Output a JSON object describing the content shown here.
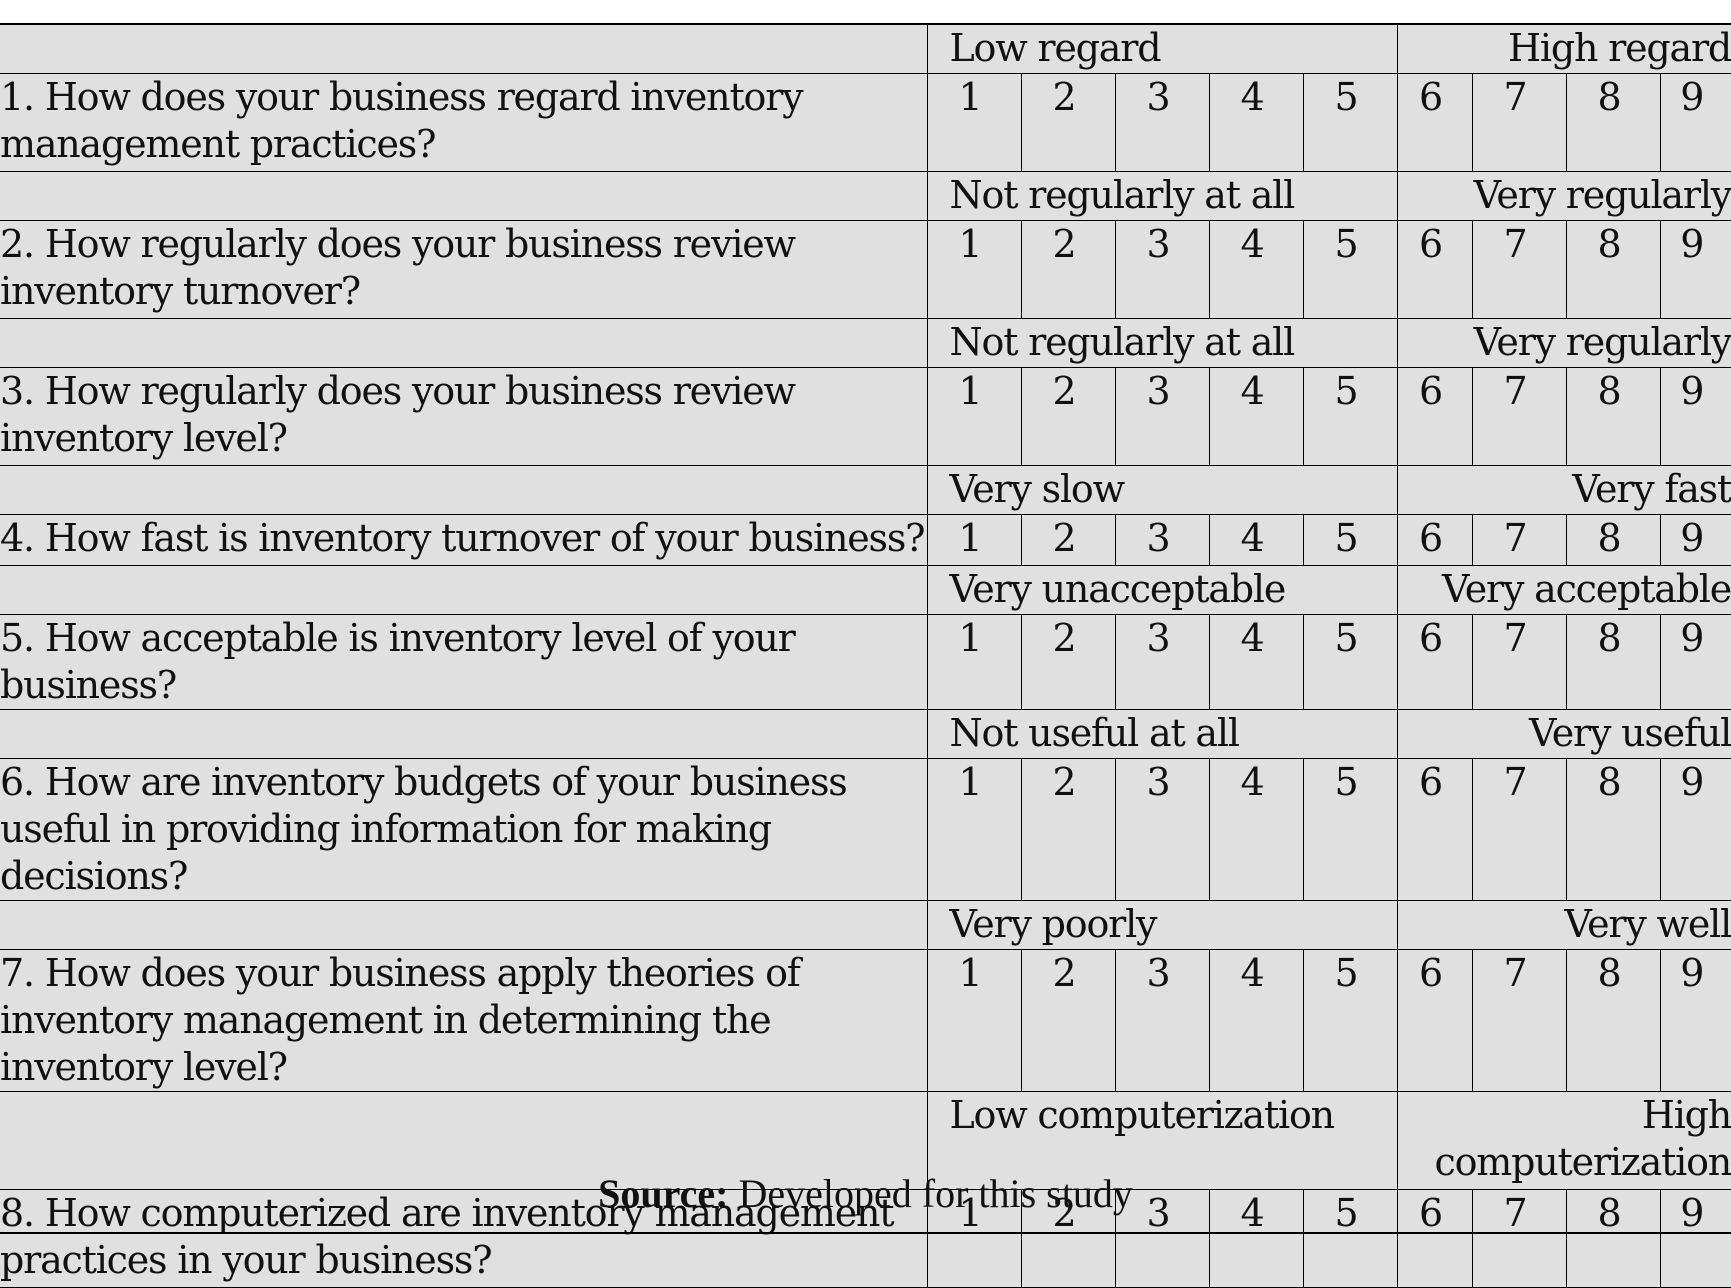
{
  "scale_values": [
    "1",
    "2",
    "3",
    "4",
    "5",
    "6",
    "7",
    "8",
    "9"
  ],
  "questions": [
    {
      "text": "1. How does your business regard inventory management practices?",
      "low": "Low regard",
      "high": "High regard"
    },
    {
      "text": "2. How regularly does your business review inventory turnover?",
      "low": "Not regularly at all",
      "high": "Very regularly"
    },
    {
      "text": "3. How regularly does your business review inventory level?",
      "low": "Not regularly at all",
      "high": "Very regularly"
    },
    {
      "text": "4. How fast is inventory turnover of your business?",
      "low": "Very slow",
      "high": "Very fast"
    },
    {
      "text": "5. How acceptable is inventory level of your business?",
      "low": "Very unacceptable",
      "high": "Very acceptable"
    },
    {
      "text": "6. How are inventory budgets of your business useful in providing information for making decisions?",
      "low": "Not useful at all",
      "high": "Very useful"
    },
    {
      "text": "7. How does your business apply theories of inventory management in determining the inventory level?",
      "low": "Very poorly",
      "high": "Very well"
    },
    {
      "text": "8. How computerized are inventory management practices in your business?",
      "low": "Low computerization",
      "high": "High computerization"
    }
  ],
  "source": {
    "label": "Source:",
    "text": " Developed for this study"
  }
}
